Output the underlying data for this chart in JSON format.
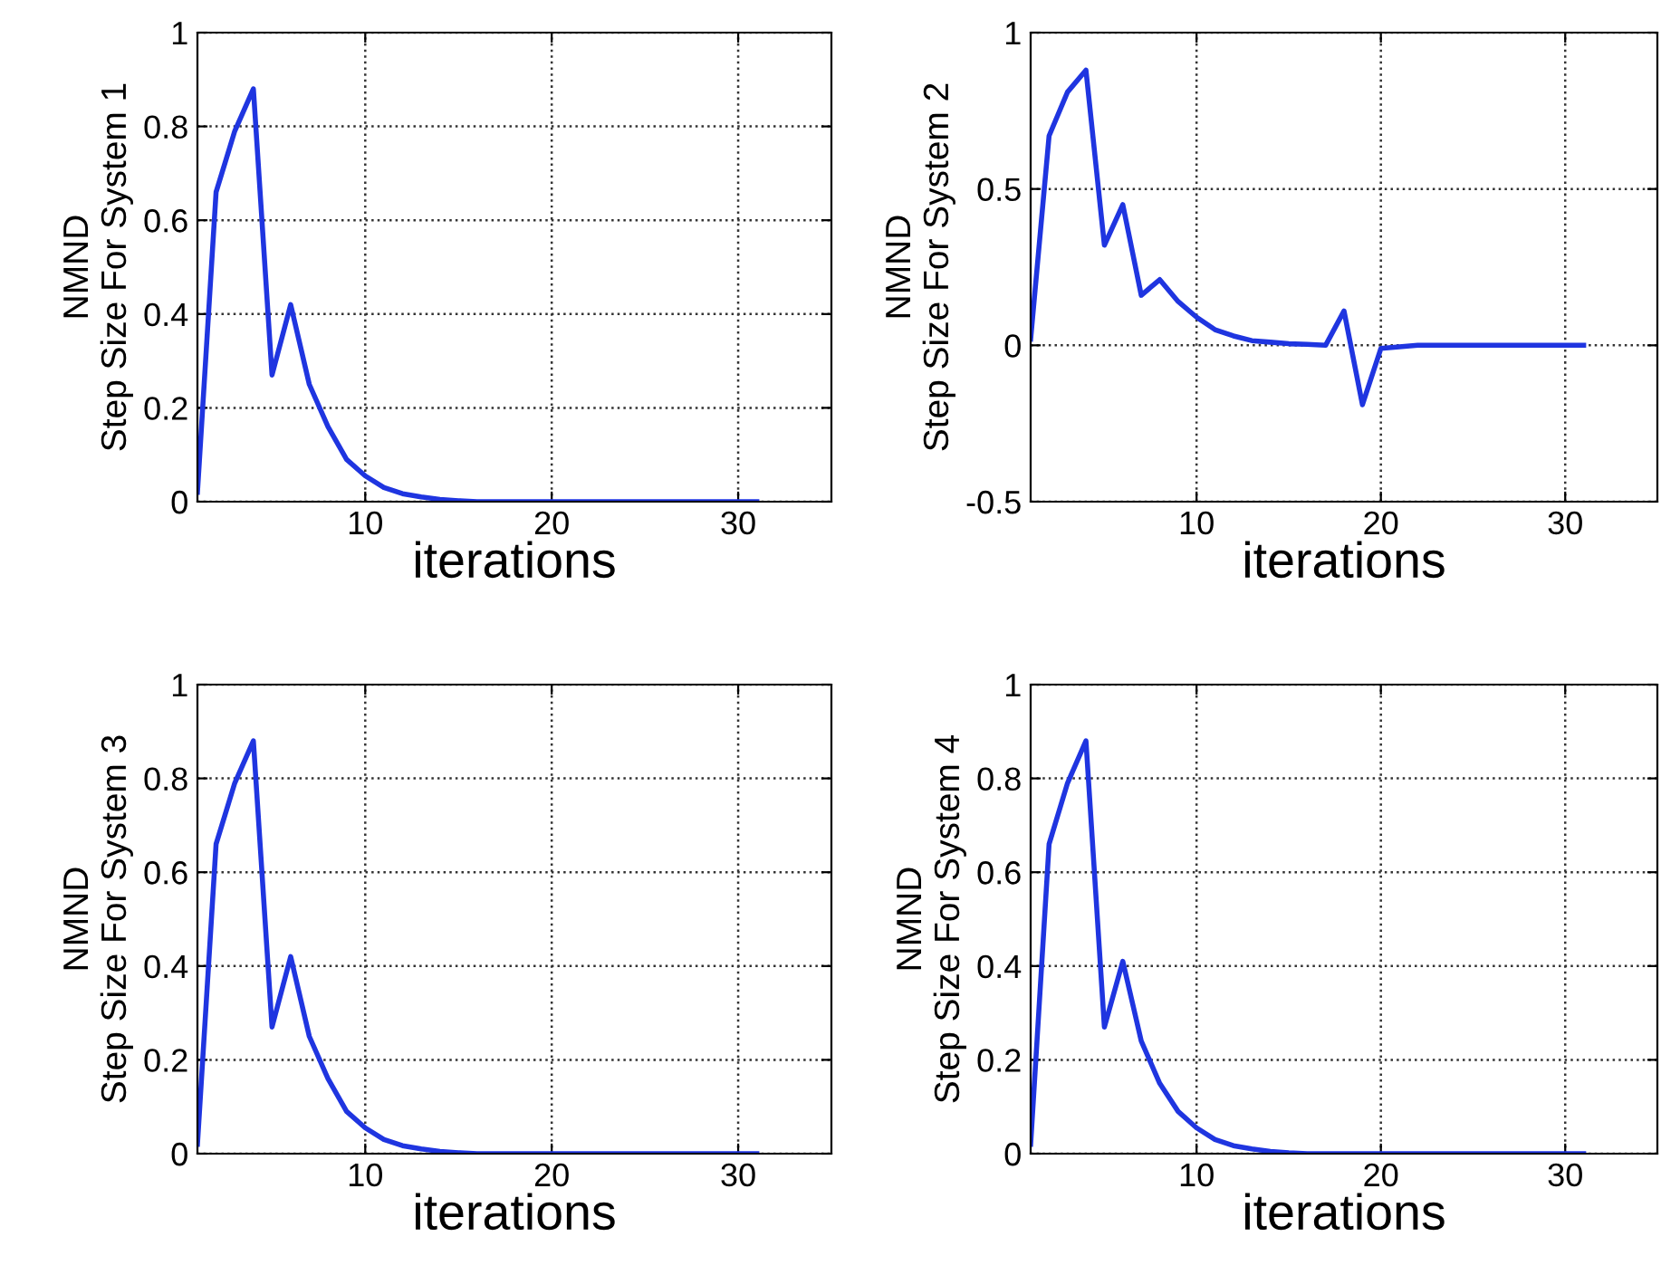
{
  "chart_data": [
    {
      "type": "line",
      "xlabel": "iterations",
      "ylabel": "NMND\nStep Size For System 1",
      "x": [
        1,
        2,
        3,
        4,
        5,
        6,
        7,
        8,
        9,
        10,
        11,
        12,
        13,
        14,
        15,
        16,
        17,
        18,
        19,
        20,
        21,
        22,
        23,
        24,
        25,
        26,
        27,
        28,
        29,
        30,
        31
      ],
      "series": [
        {
          "color": "#1f35e0",
          "values": [
            0.02,
            0.66,
            0.79,
            0.88,
            0.27,
            0.42,
            0.25,
            0.16,
            0.09,
            0.055,
            0.03,
            0.017,
            0.01,
            0.005,
            0.002,
            0,
            0,
            0,
            0,
            0,
            0,
            0,
            0,
            0,
            0,
            0,
            0,
            0,
            0,
            0,
            0
          ]
        }
      ],
      "xlim": [
        1,
        35
      ],
      "ylim": [
        0,
        1
      ],
      "xticks": [
        10,
        20,
        30
      ],
      "yticks": [
        0,
        0.2,
        0.4,
        0.6,
        0.8,
        1
      ],
      "grid": true
    },
    {
      "type": "line",
      "xlabel": "iterations",
      "ylabel": "NMND\nStep Size For System 2",
      "x": [
        1,
        2,
        3,
        4,
        5,
        6,
        7,
        8,
        9,
        10,
        11,
        12,
        13,
        14,
        15,
        16,
        17,
        18,
        19,
        20,
        21,
        22,
        23,
        24,
        25,
        26,
        27,
        28,
        29,
        30,
        31
      ],
      "series": [
        {
          "color": "#1f35e0",
          "values": [
            0.02,
            0.67,
            0.81,
            0.88,
            0.32,
            0.45,
            0.16,
            0.21,
            0.14,
            0.09,
            0.05,
            0.03,
            0.015,
            0.01,
            0.005,
            0.003,
            0,
            0.11,
            -0.19,
            -0.01,
            -0.005,
            0,
            0,
            0,
            0,
            0,
            0,
            0,
            0,
            0,
            0
          ]
        }
      ],
      "xlim": [
        1,
        35
      ],
      "ylim": [
        -0.5,
        1
      ],
      "xticks": [
        10,
        20,
        30
      ],
      "yticks": [
        -0.5,
        0,
        0.5,
        1
      ],
      "grid": true
    },
    {
      "type": "line",
      "xlabel": "iterations",
      "ylabel": "NMND\nStep Size For System 3",
      "x": [
        1,
        2,
        3,
        4,
        5,
        6,
        7,
        8,
        9,
        10,
        11,
        12,
        13,
        14,
        15,
        16,
        17,
        18,
        19,
        20,
        21,
        22,
        23,
        24,
        25,
        26,
        27,
        28,
        29,
        30,
        31
      ],
      "series": [
        {
          "color": "#1f35e0",
          "values": [
            0.02,
            0.66,
            0.79,
            0.88,
            0.27,
            0.42,
            0.25,
            0.16,
            0.09,
            0.055,
            0.03,
            0.017,
            0.01,
            0.005,
            0.002,
            0,
            0,
            0,
            0,
            0,
            0,
            0,
            0,
            0,
            0,
            0,
            0,
            0,
            0,
            0,
            0
          ]
        }
      ],
      "xlim": [
        1,
        35
      ],
      "ylim": [
        0,
        1
      ],
      "xticks": [
        10,
        20,
        30
      ],
      "yticks": [
        0,
        0.2,
        0.4,
        0.6,
        0.8,
        1
      ],
      "grid": true
    },
    {
      "type": "line",
      "xlabel": "iterations",
      "ylabel": "NMND\nStep Size For System 4",
      "x": [
        1,
        2,
        3,
        4,
        5,
        6,
        7,
        8,
        9,
        10,
        11,
        12,
        13,
        14,
        15,
        16,
        17,
        18,
        19,
        20,
        21,
        22,
        23,
        24,
        25,
        26,
        27,
        28,
        29,
        30,
        31
      ],
      "series": [
        {
          "color": "#1f35e0",
          "values": [
            0.02,
            0.66,
            0.79,
            0.88,
            0.27,
            0.41,
            0.24,
            0.15,
            0.09,
            0.055,
            0.03,
            0.017,
            0.01,
            0.005,
            0.002,
            0,
            0,
            0,
            0,
            0,
            0,
            0,
            0,
            0,
            0,
            0,
            0,
            0,
            0,
            0,
            0
          ]
        }
      ],
      "xlim": [
        1,
        35
      ],
      "ylim": [
        0,
        1
      ],
      "xticks": [
        10,
        20,
        30
      ],
      "yticks": [
        0,
        0.2,
        0.4,
        0.6,
        0.8,
        1
      ],
      "grid": true
    }
  ]
}
